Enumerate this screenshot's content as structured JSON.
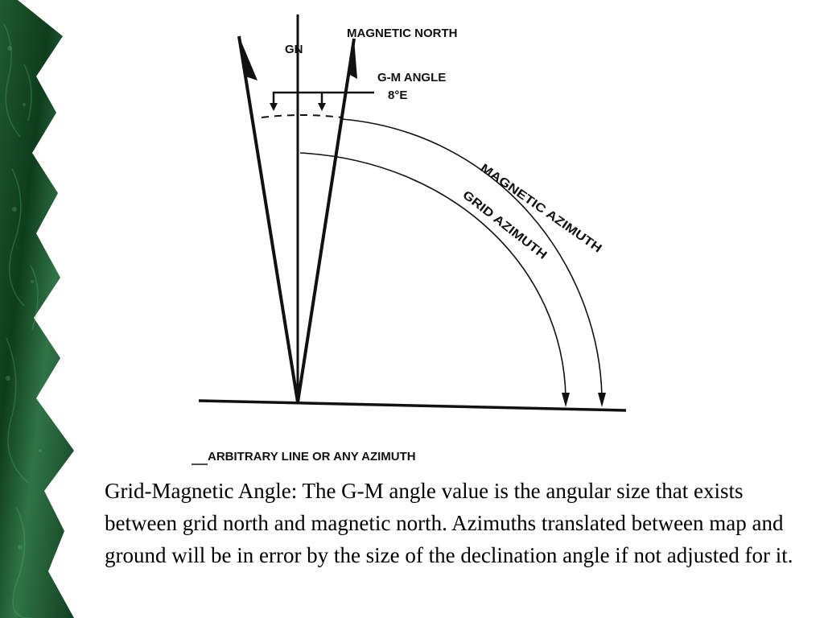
{
  "diagram": {
    "label_gn": "GN",
    "label_magnetic_north": "MAGNETIC NORTH",
    "label_gm_angle": "G-M ANGLE",
    "label_gm_value": "8°E",
    "label_magnetic_azimuth": "MAGNETIC AZIMUTH",
    "label_grid_azimuth": "GRID AZIMUTH",
    "label_baseline": "ARBITRARY LINE OR ANY AZIMUTH"
  },
  "caption": {
    "text": "Grid-Magnetic Angle: The G-M angle value is the angular size that exists between grid north and magnetic north.  Azimuths translated between map and ground will be in error by the size of the declination angle if not adjusted for it."
  },
  "colors": {
    "border_dark": "#0e3d1c",
    "border_light": "#3d8a55",
    "ink": "#111111"
  }
}
